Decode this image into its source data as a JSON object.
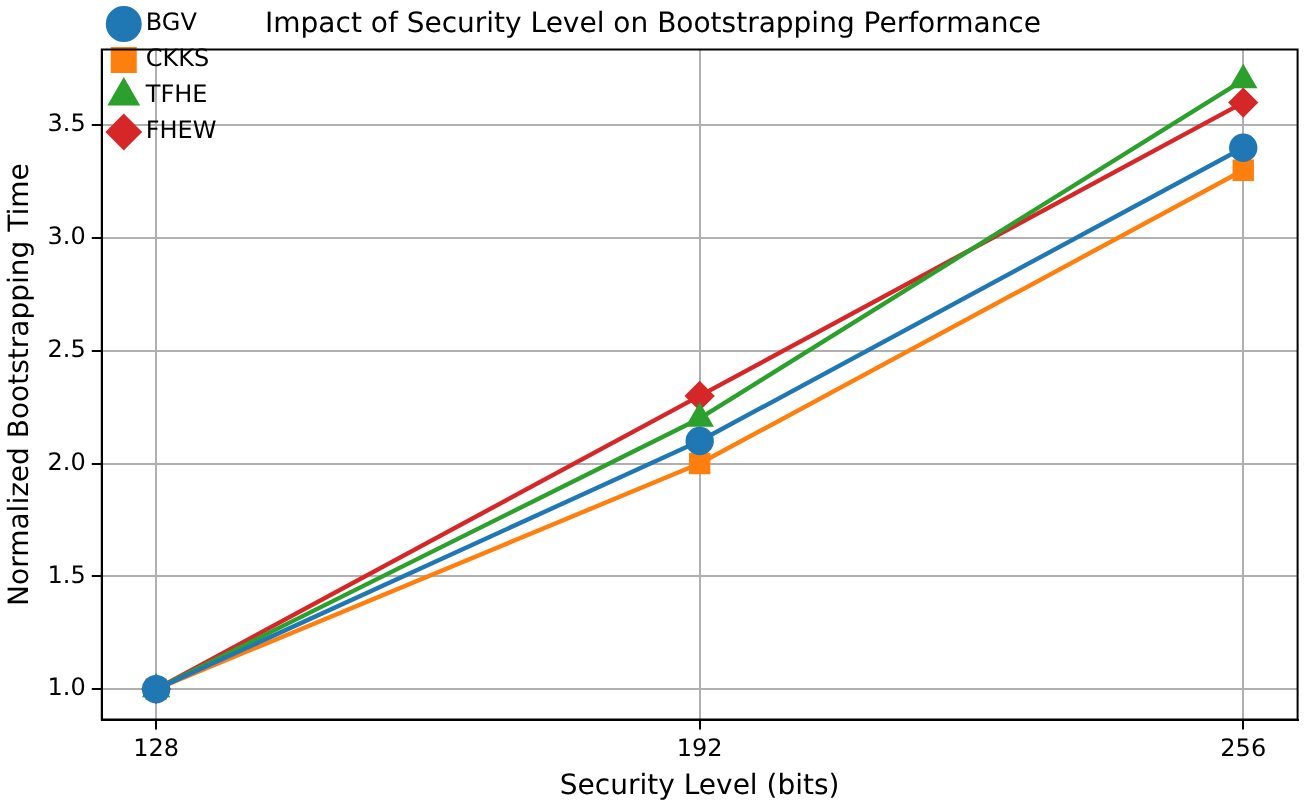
{
  "chart_data": {
    "type": "line",
    "title": "Impact of Security Level on Bootstrapping Performance",
    "xlabel": "Security Level (bits)",
    "ylabel": "Normalized Bootstrapping Time",
    "x": [
      128,
      192,
      256
    ],
    "series": [
      {
        "name": "BGV",
        "color": "#1f77b4",
        "marker": "circle",
        "values": [
          1.0,
          2.1,
          3.4
        ]
      },
      {
        "name": "CKKS",
        "color": "#ff7f0e",
        "marker": "square",
        "values": [
          1.0,
          2.0,
          3.3
        ]
      },
      {
        "name": "TFHE",
        "color": "#2ca02c",
        "marker": "triangle",
        "values": [
          1.0,
          2.2,
          3.7
        ]
      },
      {
        "name": "FHEW",
        "color": "#d62728",
        "marker": "diamond",
        "values": [
          1.0,
          2.3,
          3.6
        ]
      }
    ],
    "xlim": [
      121.6,
      262.4
    ],
    "xticks": [
      128,
      192,
      256
    ],
    "ylim": [
      0.865,
      3.835
    ],
    "yticks": [
      {
        "value": 1.0,
        "label": "1.0"
      },
      {
        "value": 1.5,
        "label": "1.5"
      },
      {
        "value": 2.0,
        "label": "2.0"
      },
      {
        "value": 2.5,
        "label": "2.5"
      },
      {
        "value": 3.0,
        "label": "3.0"
      },
      {
        "value": 3.5,
        "label": "3.5"
      }
    ],
    "grid": true,
    "legend": "top left",
    "line_style": "solid"
  }
}
